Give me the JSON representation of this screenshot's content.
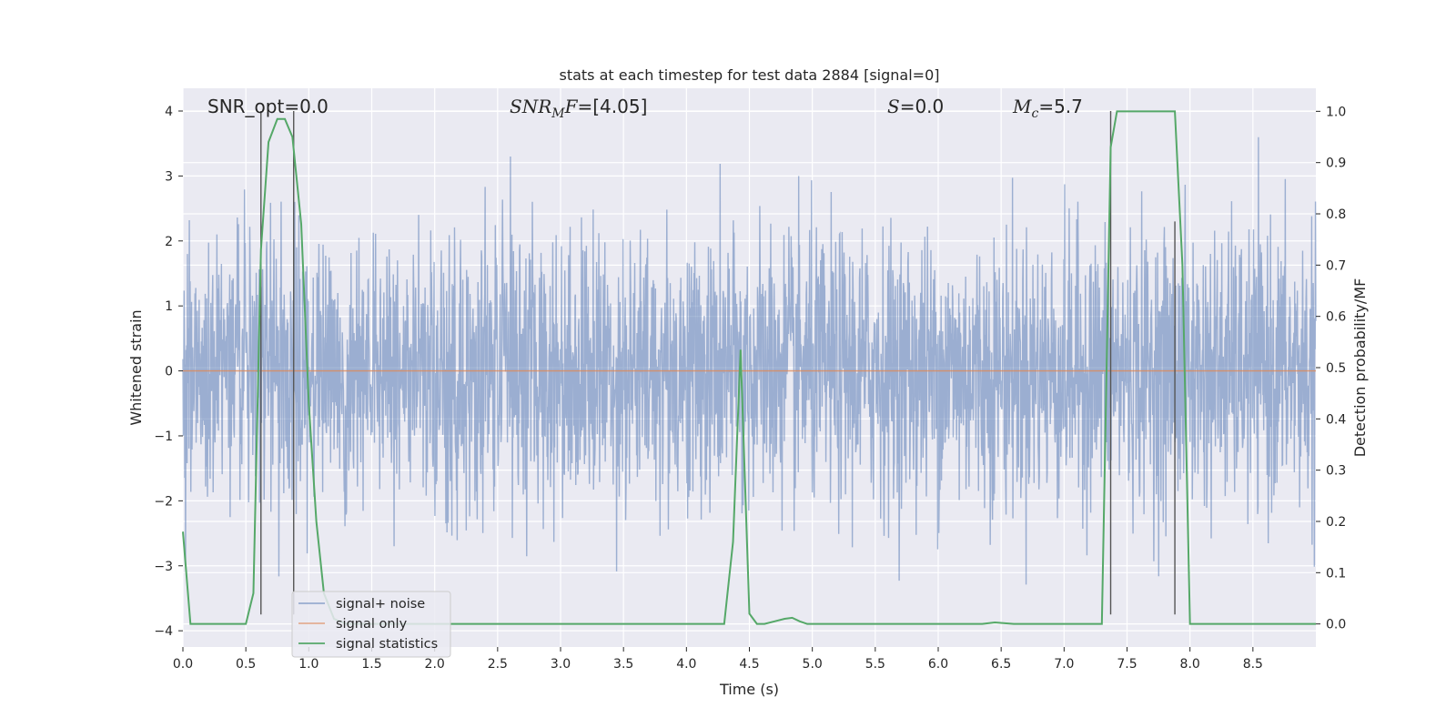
{
  "chart_data": {
    "type": "line",
    "title": "stats at each timestep for test data 2884 [signal=0]",
    "xlabel": "Time (s)",
    "ylabel": "Whitened strain",
    "y2label": "Detection probability/MF",
    "xlim": [
      0.0,
      9.0
    ],
    "ylim": [
      -4.25,
      4.35
    ],
    "y2lim": [
      -0.045,
      1.045
    ],
    "x_ticks": [
      "0.0",
      "0.5",
      "1.0",
      "1.5",
      "2.0",
      "2.5",
      "3.0",
      "3.5",
      "4.0",
      "4.5",
      "5.0",
      "5.5",
      "6.0",
      "6.5",
      "7.0",
      "7.5",
      "8.0",
      "8.5"
    ],
    "y_ticks": [
      "4",
      "3",
      "2",
      "1",
      "0",
      "−1",
      "−2",
      "−3",
      "−4"
    ],
    "y2_ticks": [
      "1.0",
      "0.9",
      "0.8",
      "0.7",
      "0.6",
      "0.5",
      "0.4",
      "0.3",
      "0.2",
      "0.1",
      "0.0"
    ],
    "grid": true,
    "legend_position": "lower-left",
    "annotations": {
      "snr_opt": "SNR_opt=0.0",
      "snr_mf_prefix": "SNR",
      "snr_mf_sub": "M",
      "snr_mf_suffix": "F",
      "snr_mf_value": "=[4.05]",
      "s_symbol": "S",
      "s_value": "=0.0",
      "mc_symbol": "M",
      "mc_sub": "c",
      "mc_value": "=5.7"
    },
    "series": [
      {
        "name": "signal+ noise",
        "color": "#4c72b0",
        "style": "dense noise trace, alpha 0.5",
        "envelope": {
          "x": [
            0.0,
            0.45,
            0.9,
            1.35,
            1.8,
            2.25,
            2.7,
            3.15,
            3.6,
            4.05,
            4.5,
            4.95,
            5.4,
            5.85,
            6.3,
            6.75,
            7.2,
            7.65,
            8.1,
            8.55,
            9.0
          ],
          "upper": [
            2.6,
            3.5,
            3.9,
            3.3,
            3.5,
            3.3,
            3.3,
            3.3,
            3.2,
            3.7,
            3.4,
            3.6,
            3.5,
            3.7,
            3.5,
            3.3,
            3.2,
            3.5,
            3.4,
            3.6,
            2.6
          ],
          "lower": [
            -3.5,
            -3.1,
            -3.6,
            -3.1,
            -3.4,
            -3.6,
            -3.3,
            -3.5,
            -3.6,
            -3.6,
            -3.6,
            -3.5,
            -3.1,
            -3.3,
            -3.2,
            -3.3,
            -3.2,
            -3.5,
            -3.4,
            -3.5,
            -3.0
          ]
        }
      },
      {
        "name": "signal only",
        "color": "#dd8452",
        "x": [
          0.0,
          9.0
        ],
        "y": [
          0.0,
          0.0
        ]
      },
      {
        "name": "signal statistics",
        "color": "#55a868",
        "axis": "right",
        "x": [
          0.0,
          0.06,
          0.12,
          0.2,
          0.5,
          0.56,
          0.62,
          0.68,
          0.75,
          0.81,
          0.87,
          0.94,
          1.0,
          1.06,
          1.12,
          1.2,
          1.3,
          1.5,
          4.3,
          4.37,
          4.43,
          4.5,
          4.56,
          4.62,
          4.7,
          4.78,
          4.84,
          4.9,
          4.96,
          5.05,
          6.35,
          6.45,
          6.6,
          7.3,
          7.37,
          7.42,
          7.88,
          7.94,
          8.0,
          9.0
        ],
        "y": [
          0.18,
          0.0,
          0.0,
          0.0,
          0.0,
          0.06,
          0.73,
          0.94,
          0.985,
          0.985,
          0.95,
          0.78,
          0.43,
          0.2,
          0.06,
          0.01,
          0.0,
          0.0,
          0.0,
          0.16,
          0.535,
          0.02,
          0.0,
          0.0,
          0.005,
          0.01,
          0.012,
          0.005,
          0.0,
          0.0,
          0.0,
          0.003,
          0.0,
          0.0,
          0.93,
          1.0,
          1.0,
          0.7,
          0.0,
          0.0
        ]
      }
    ],
    "vertical_lines": {
      "color": "#555555",
      "x": [
        0.62,
        0.88,
        7.37,
        7.88
      ],
      "ymax": [
        4.0,
        4.0,
        4.0,
        2.3
      ],
      "ymin": -3.75
    }
  }
}
